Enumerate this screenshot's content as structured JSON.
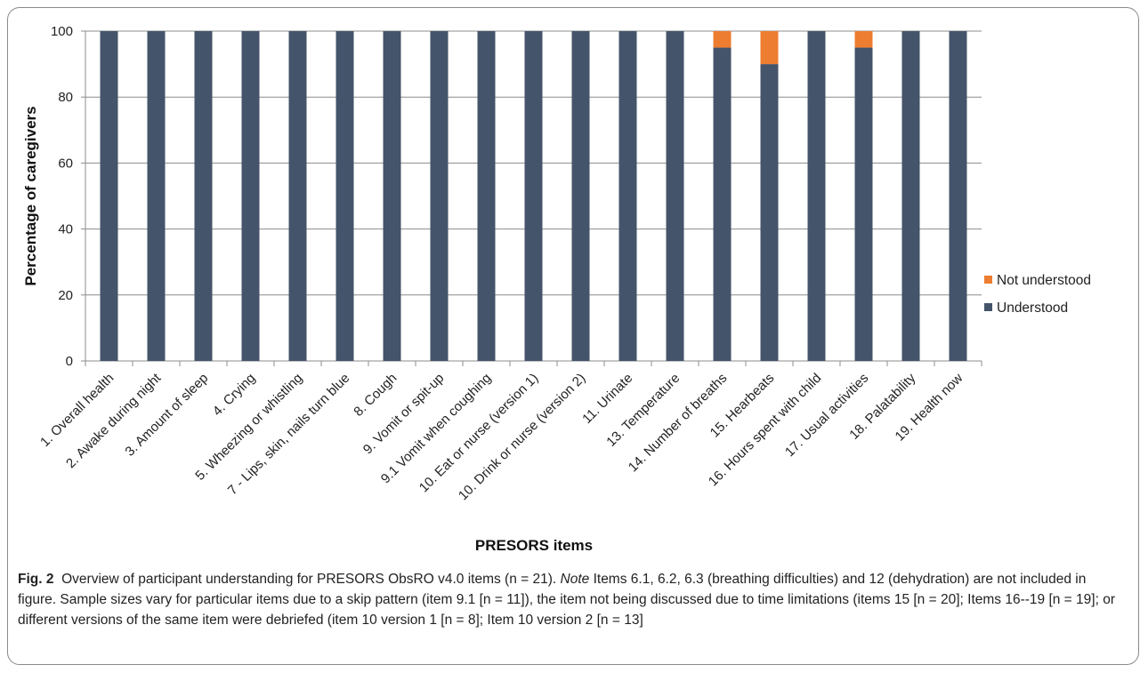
{
  "chart_data": {
    "type": "bar",
    "stacked": true,
    "ylabel": "Percentage of caregivers",
    "xlabel": "PRESORS items",
    "ylim": [
      0,
      100
    ],
    "yticks": [
      0,
      20,
      40,
      60,
      80,
      100
    ],
    "grid": true,
    "legend_position": "right",
    "categories": [
      "1. Overall health",
      "2. Awake during night",
      "3. Amount of sleep",
      "4. Crying",
      "5. Wheezing or whistling",
      "7 - Lips, skin, nails turn blue",
      "8. Cough",
      "9. Vomit or spit-up",
      "9.1 Vomit when coughing",
      "10. Eat or nurse (version 1)",
      "10. Drink or nurse (version 2)",
      "11. Urinate",
      "13. Temperature",
      "14. Number of breaths",
      "15. Hearbeats",
      "16. Hours spent with child",
      "17. Usual activities",
      "18. Palatability",
      "19. Health now"
    ],
    "series": [
      {
        "name": "Understood",
        "color": "#44546a",
        "values": [
          100,
          100,
          100,
          100,
          100,
          100,
          100,
          100,
          100,
          100,
          100,
          100,
          100,
          95,
          90,
          100,
          95,
          100,
          100
        ]
      },
      {
        "name": "Not understood",
        "color": "#ed7d31",
        "values": [
          0,
          0,
          0,
          0,
          0,
          0,
          0,
          0,
          0,
          0,
          0,
          0,
          0,
          5,
          10,
          0,
          5,
          0,
          0
        ]
      }
    ]
  },
  "caption": {
    "fig_label": "Fig. 2",
    "text_1": "Overview of participant understanding for PRESORS ObsRO v4.0 items (n = 21).",
    "note_label": "Note",
    "text_2": "Items 6.1, 6.2, 6.3 (breathing difficulties) and 12 (dehydration) are not included in figure. Sample sizes vary for particular items due to a skip pattern (item 9.1 [n = 11]), the item not being discussed due to time limitations (items 15 [n = 20]; Items 16--19 [n = 19]; or different versions of the same item were debriefed (item 10 version 1 [n = 8]; Item 10 version 2 [n = 13]"
  }
}
